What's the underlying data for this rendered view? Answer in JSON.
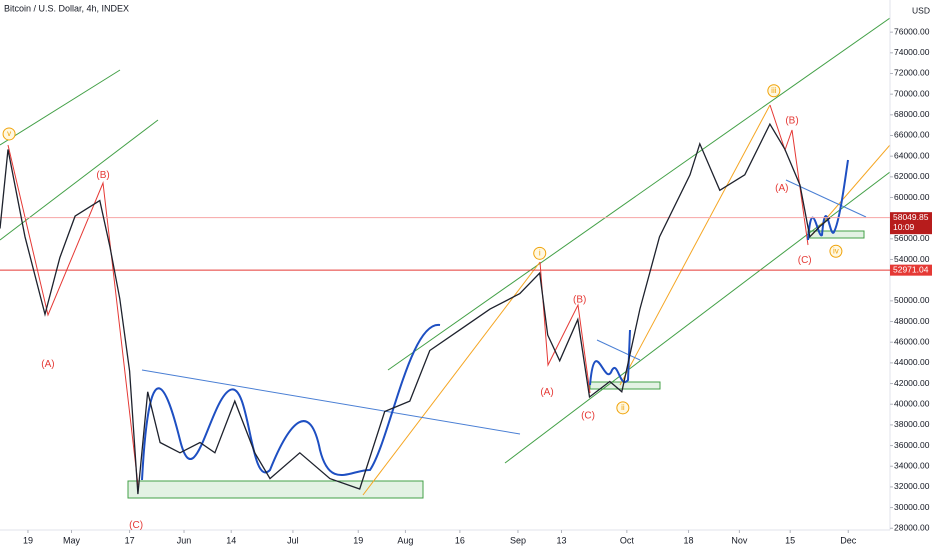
{
  "chart_data": {
    "type": "line",
    "title": "Bitcoin / U.S. Dollar, 4h, INDEX",
    "y_unit": "USD",
    "color": "#1e222d",
    "x": [
      -7.7,
      -5.5,
      -0.8,
      4.7,
      8.8,
      13,
      19.8,
      22.6,
      25.3,
      28,
      30.3,
      33,
      36.4,
      41.9,
      47.4,
      51.5,
      57,
      62.5,
      66.7,
      74.9,
      83.2,
      91.4,
      98.3,
      105.2,
      110.7,
      119,
      127.3,
      135.5,
      141,
      143.2,
      146.5,
      151.5,
      154.7,
      160.3,
      163.6,
      168.6,
      174,
      182.4,
      185.1,
      190.6,
      197.5,
      204.4,
      208.5,
      212.7,
      215.4,
      218.2,
      221
    ],
    "values": [
      57000,
      64650,
      56200,
      48700,
      54200,
      58200,
      59700,
      55200,
      50200,
      43200,
      31300,
      41200,
      36300,
      35300,
      36300,
      35300,
      40300,
      35300,
      32800,
      35300,
      32800,
      31800,
      39300,
      40300,
      45200,
      47200,
      49200,
      50700,
      52700,
      46700,
      44200,
      48200,
      40700,
      42200,
      41200,
      49200,
      56200,
      62200,
      65200,
      60700,
      62200,
      67100,
      64700,
      61200,
      56200,
      57200,
      58049.85
    ],
    "xlim": [
      -7.7,
      237.5
    ],
    "ylim": [
      27830,
      79110
    ],
    "xticks": [
      {
        "value": 0,
        "label": "19"
      },
      {
        "value": 12,
        "label": "May"
      },
      {
        "value": 28,
        "label": "17"
      },
      {
        "value": 43,
        "label": "Jun"
      },
      {
        "value": 56,
        "label": "14"
      },
      {
        "value": 73,
        "label": "Jul"
      },
      {
        "value": 91,
        "label": "19"
      },
      {
        "value": 104,
        "label": "Aug"
      },
      {
        "value": 119,
        "label": "16"
      },
      {
        "value": 135,
        "label": "Sep"
      },
      {
        "value": 147,
        "label": "13"
      },
      {
        "value": 165,
        "label": "Oct"
      },
      {
        "value": 182,
        "label": "18"
      },
      {
        "value": 196,
        "label": "Nov"
      },
      {
        "value": 210,
        "label": "15"
      },
      {
        "value": 226,
        "label": "Dec"
      }
    ],
    "yticks": [
      {
        "value": 28000,
        "label": "28000.00"
      },
      {
        "value": 30000,
        "label": "30000.00"
      },
      {
        "value": 32000,
        "label": "32000.00"
      },
      {
        "value": 34000,
        "label": "34000.00"
      },
      {
        "value": 36000,
        "label": "36000.00"
      },
      {
        "value": 38000,
        "label": "38000.00"
      },
      {
        "value": 40000,
        "label": "40000.00"
      },
      {
        "value": 42000,
        "label": "42000.00"
      },
      {
        "value": 44000,
        "label": "44000.00"
      },
      {
        "value": 46000,
        "label": "46000.00"
      },
      {
        "value": 48000,
        "label": "48000.00"
      },
      {
        "value": 50000,
        "label": "50000.00"
      },
      {
        "value": 54000,
        "label": "54000.00"
      },
      {
        "value": 56000,
        "label": "56000.00"
      },
      {
        "value": 60000,
        "label": "60000.00"
      },
      {
        "value": 62000,
        "label": "62000.00"
      },
      {
        "value": 64000,
        "label": "64000.00"
      },
      {
        "value": 66000,
        "label": "66000.00"
      },
      {
        "value": 68000,
        "label": "68000.00"
      },
      {
        "value": 70000,
        "label": "70000.00"
      },
      {
        "value": 72000,
        "label": "72000.00"
      },
      {
        "value": 74000,
        "label": "74000.00"
      },
      {
        "value": 76000,
        "label": "76000.00"
      }
    ],
    "price_lines": [
      {
        "value": 58049.85,
        "label": "58049.85",
        "sublabel": "10:09",
        "color": "#f7a5a5",
        "box": "#b71c1c"
      },
      {
        "value": 52971.04,
        "label": "52971.04",
        "color": "#e53935",
        "box": "#e53935"
      }
    ],
    "annotations": [
      {
        "text": "v",
        "x": -5.2,
        "y": 66150,
        "color": "#f0a30a",
        "circled": true
      },
      {
        "text": "(A)",
        "x": 5.5,
        "y": 43840,
        "color": "#e53935"
      },
      {
        "text": "(B)",
        "x": 20.7,
        "y": 62160,
        "color": "#e53935"
      },
      {
        "text": "(C)",
        "x": 29.8,
        "y": 28300,
        "color": "#e53935"
      },
      {
        "text": "i",
        "x": 141,
        "y": 54600,
        "color": "#f0a30a",
        "circled": true
      },
      {
        "text": "(A)",
        "x": 143,
        "y": 41150,
        "color": "#e53935"
      },
      {
        "text": "(B)",
        "x": 152,
        "y": 50100,
        "color": "#e53935"
      },
      {
        "text": "(C)",
        "x": 154.3,
        "y": 38860,
        "color": "#e53935"
      },
      {
        "text": "ii",
        "x": 163.9,
        "y": 39650,
        "color": "#f0a30a",
        "circled": true
      },
      {
        "text": "iii",
        "x": 205.5,
        "y": 70330,
        "color": "#f0a30a",
        "circled": true
      },
      {
        "text": "(A)",
        "x": 207.7,
        "y": 60870,
        "color": "#e53935"
      },
      {
        "text": "(B)",
        "x": 210.5,
        "y": 67440,
        "color": "#e53935"
      },
      {
        "text": "(C)",
        "x": 214,
        "y": 53900,
        "color": "#e53935"
      },
      {
        "text": "iv",
        "x": 222.6,
        "y": 54800,
        "color": "#f0a30a",
        "circled": true
      }
    ]
  }
}
